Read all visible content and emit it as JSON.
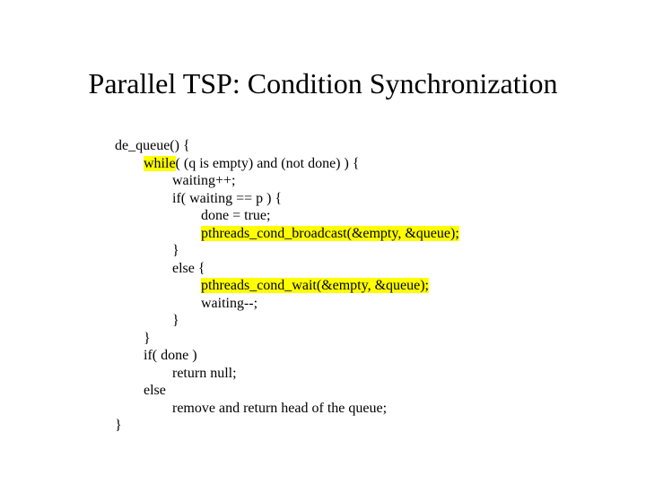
{
  "title": "Parallel TSP: Condition Synchronization",
  "code": {
    "l1a": "de_queue() {",
    "l2a": "\t",
    "l2kw": "while",
    "l2b": "( (q is empty) and (not done) ) {",
    "l3": "\t\twaiting++;",
    "l4": "\t\tif( waiting == p ) {",
    "l5": "\t\t\tdone = true;",
    "l6a": "\t\t\t",
    "l6kw": "pthreads_cond_broadcast(&empty, &queue);",
    "l7": "\t\t}",
    "l8": "\t\telse {",
    "l9a": "\t\t\t",
    "l9kw": "pthreads_cond_wait(&empty, &queue);",
    "l10": "\t\t\twaiting--;",
    "l11": "\t\t}",
    "l12": "\t}",
    "l13": "\tif( done )",
    "l14": "\t\treturn null;",
    "l15": "\telse",
    "l16": "\t\tremove and return head of the queue;",
    "l17": "}"
  },
  "colors": {
    "highlight": "#ffff00",
    "text": "#000000",
    "background": "#ffffff"
  },
  "fonts": {
    "title_size_pt": 32,
    "code_size_pt": 16,
    "family": "Times New Roman"
  }
}
